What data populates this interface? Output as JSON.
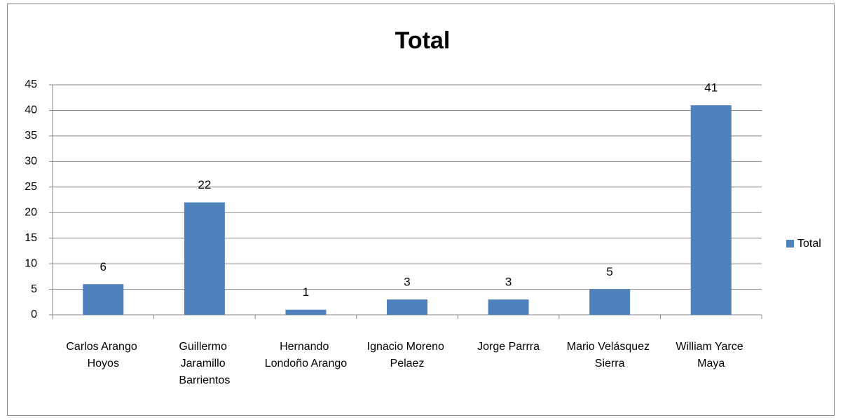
{
  "chart_data": {
    "type": "bar",
    "title": "Total",
    "categories": [
      "Carlos Arango Hoyos",
      "Guillermo Jaramillo Barrientos",
      "Hernando Londoño Arango",
      "Ignacio Moreno Pelaez",
      "Jorge Parrra",
      "Mario Velásquez Sierra",
      "William Yarce Maya"
    ],
    "series": [
      {
        "name": "Total",
        "color": "#4f81bd",
        "values": [
          6,
          22,
          1,
          3,
          3,
          5,
          41
        ]
      }
    ],
    "ylim": [
      0,
      45
    ],
    "yticks": [
      0,
      5,
      10,
      15,
      20,
      25,
      30,
      35,
      40,
      45
    ],
    "grid": true,
    "legend": "right"
  }
}
